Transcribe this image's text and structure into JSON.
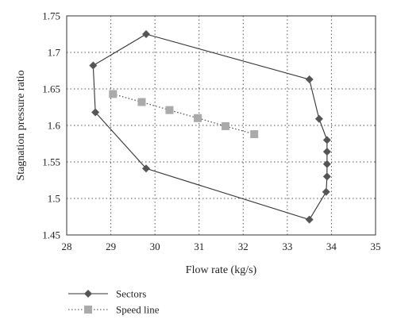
{
  "chart_data": {
    "type": "scatter",
    "xlabel": "Flow rate (kg/s)",
    "ylabel": "Stagnation pressure ratio",
    "xlim": [
      28,
      35
    ],
    "ylim": [
      1.45,
      1.75
    ],
    "x_ticks": [
      "28",
      "29",
      "30",
      "31",
      "32",
      "33",
      "34",
      "35"
    ],
    "y_ticks": [
      "1.45",
      "1.5",
      "1.55",
      "1.6",
      "1.65",
      "1.7",
      "1.75"
    ],
    "grid": "dotted",
    "legend_position": "bottom-left",
    "series": [
      {
        "name": "Sectors",
        "marker": "diamond",
        "line": "solid",
        "closed": true,
        "color": "#555555",
        "points": [
          {
            "x": 29.8,
            "y": 1.725
          },
          {
            "x": 33.5,
            "y": 1.663
          },
          {
            "x": 33.72,
            "y": 1.609
          },
          {
            "x": 33.9,
            "y": 1.58
          },
          {
            "x": 33.9,
            "y": 1.564
          },
          {
            "x": 33.9,
            "y": 1.547
          },
          {
            "x": 33.9,
            "y": 1.53
          },
          {
            "x": 33.88,
            "y": 1.509
          },
          {
            "x": 33.5,
            "y": 1.471
          },
          {
            "x": 29.8,
            "y": 1.541
          },
          {
            "x": 28.65,
            "y": 1.618
          },
          {
            "x": 28.6,
            "y": 1.682
          }
        ]
      },
      {
        "name": "Speed line",
        "marker": "square",
        "line": "dotted",
        "closed": false,
        "color": "#aaaaaa",
        "points": [
          {
            "x": 29.05,
            "y": 1.643
          },
          {
            "x": 29.7,
            "y": 1.632
          },
          {
            "x": 30.33,
            "y": 1.621
          },
          {
            "x": 30.97,
            "y": 1.61
          },
          {
            "x": 31.6,
            "y": 1.599
          },
          {
            "x": 32.25,
            "y": 1.588
          }
        ]
      }
    ]
  }
}
